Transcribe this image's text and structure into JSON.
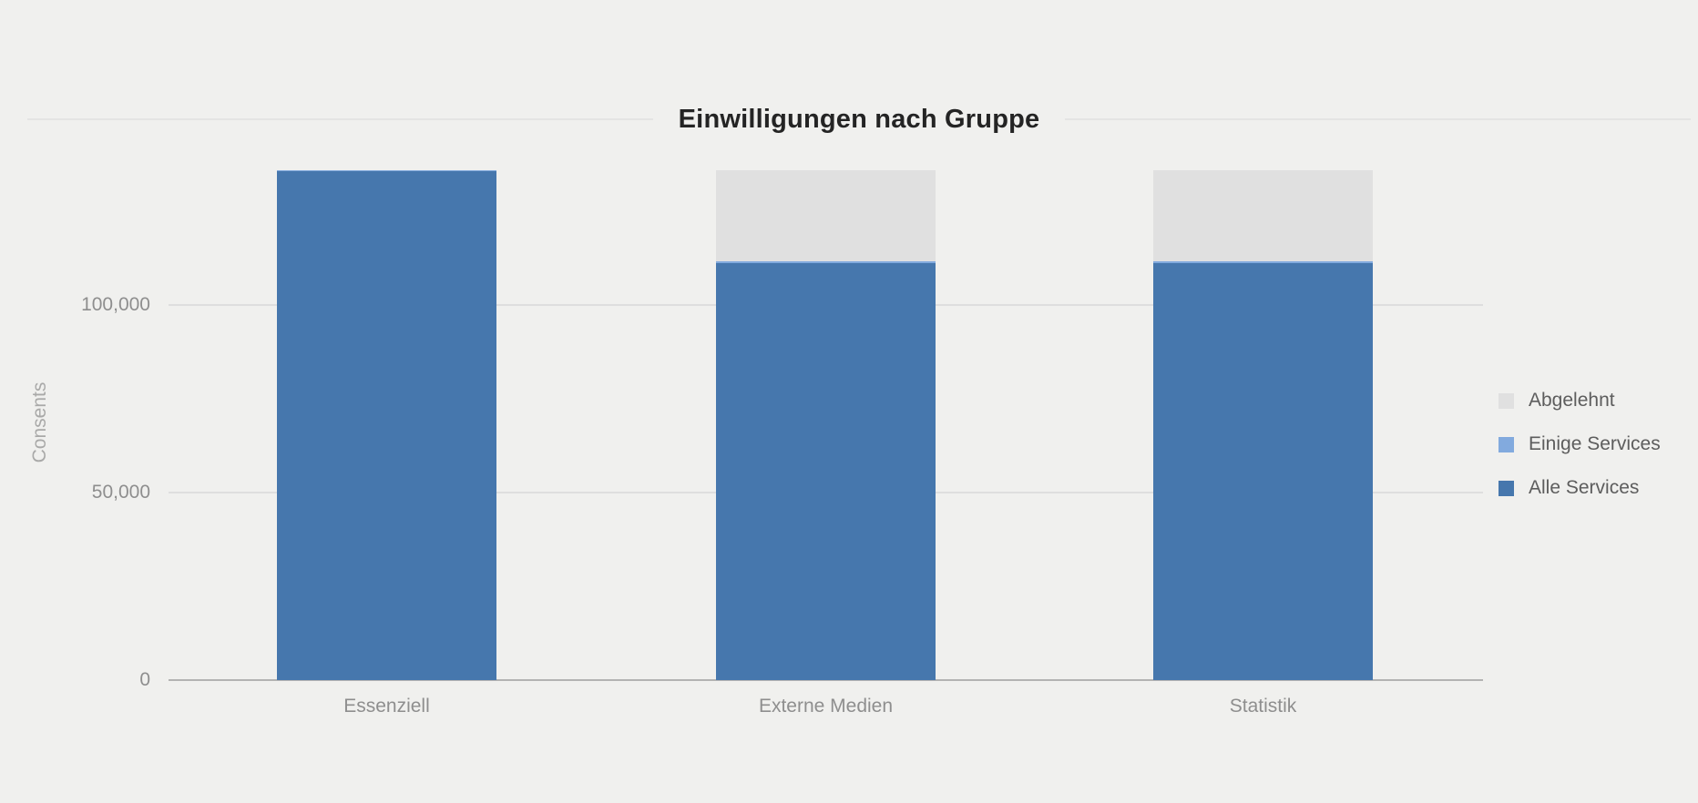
{
  "page": {
    "background": "#f0f0ee"
  },
  "chart_data": {
    "type": "bar",
    "stacked": true,
    "title": "Einwilligungen nach Gruppe",
    "ylabel": "Consents",
    "xlabel": "",
    "categories": [
      "Essenziell",
      "Externe Medien",
      "Statistik"
    ],
    "series": [
      {
        "name": "Alle Services",
        "color": "#4677ad",
        "values": [
          135600,
          111200,
          111200
        ]
      },
      {
        "name": "Einige Services",
        "color": "#82aade",
        "values": [
          400,
          400,
          400
        ]
      },
      {
        "name": "Abgelehnt",
        "color": "#e0e0e0",
        "values": [
          0,
          24400,
          24400
        ]
      }
    ],
    "totals": [
      136000,
      136000,
      136000
    ],
    "y_ticks": [
      {
        "value": 0,
        "label": "0"
      },
      {
        "value": 50000,
        "label": "50,000"
      },
      {
        "value": 100000,
        "label": "100,000"
      }
    ],
    "ylim": [
      0,
      136000
    ],
    "grid": true,
    "legend_position": "right",
    "legend": [
      "Abgelehnt",
      "Einige Services",
      "Alle Services"
    ]
  },
  "colors": {
    "gridline": "#dedede",
    "axis_line": "#b3b3b2",
    "tick_label": "#8e8e8e",
    "axis_title": "#a9a9a8",
    "legend_text": "#5d5d5d",
    "title_text": "#242424",
    "title_rule": "#e4e4e3"
  }
}
